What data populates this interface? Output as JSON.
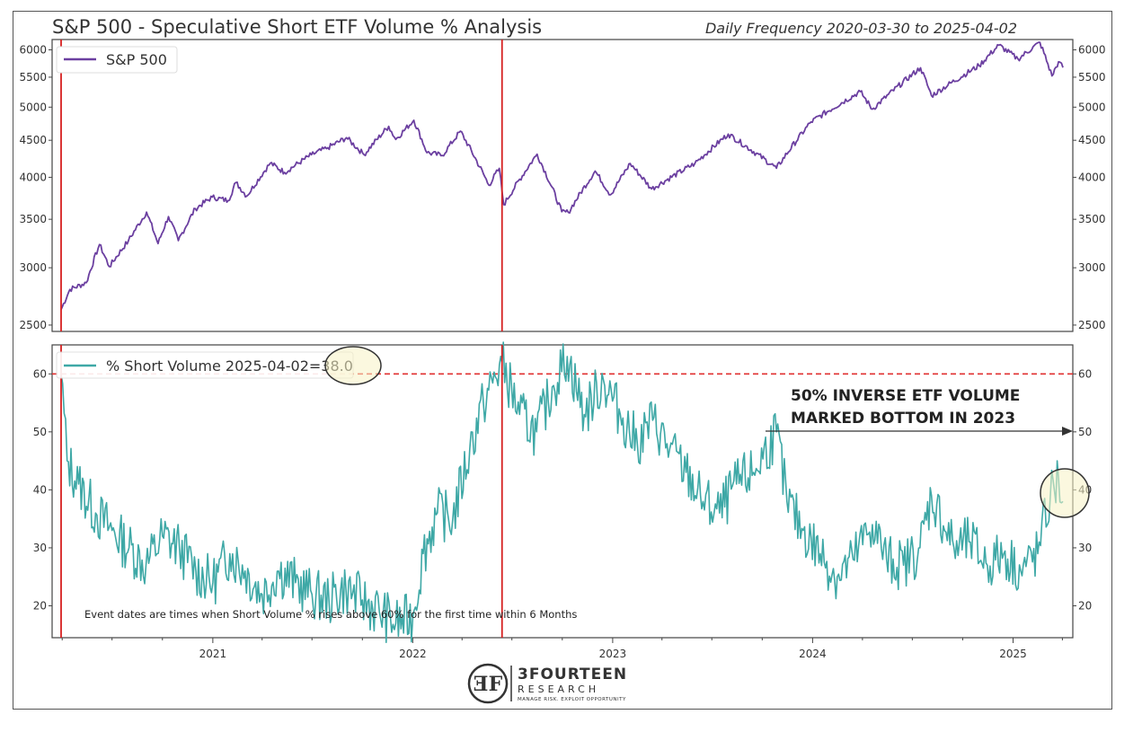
{
  "header": {
    "title": "S&P 500 - Speculative Short ETF Volume % Analysis",
    "subtitle": "Daily Frequency 2020-03-30 to 2025-04-02"
  },
  "annotations": {
    "note": "Event dates are times when Short Volume % rises above 60% for the first time within 6 Months",
    "arrow_line1": "50% INVERSE ETF VOLUME",
    "arrow_line2": "MARKED BOTTOM IN 2023"
  },
  "logo": {
    "name": "3FOURTEEN",
    "sub": "RESEARCH",
    "tagline": "MANAGE RISK. EXPLOIT OPPORTUNITY"
  },
  "colors": {
    "sp500": "#6b3fa0",
    "short_volume": "#3ea8a6",
    "event_line": "#d62020",
    "threshold": "#e03030",
    "highlight": "#f7f2c4"
  },
  "chart_data": [
    {
      "type": "line",
      "scale": "log",
      "legend": "S&P 500",
      "legend_placement": "top-left",
      "x_range": [
        "2020-03-30",
        "2025-04-02"
      ],
      "ylim": [
        2450,
        6200
      ],
      "y_ticks": [
        2500,
        3000,
        3500,
        4000,
        4500,
        5000,
        5500,
        6000
      ],
      "series": [
        {
          "name": "S&P 500",
          "points": [
            [
              "2020-03-30",
              2626
            ],
            [
              "2020-04-15",
              2800
            ],
            [
              "2020-05-15",
              2860
            ],
            [
              "2020-06-08",
              3230
            ],
            [
              "2020-06-26",
              3010
            ],
            [
              "2020-07-31",
              3270
            ],
            [
              "2020-09-02",
              3580
            ],
            [
              "2020-09-23",
              3240
            ],
            [
              "2020-10-12",
              3530
            ],
            [
              "2020-10-30",
              3270
            ],
            [
              "2020-11-30",
              3620
            ],
            [
              "2020-12-31",
              3756
            ],
            [
              "2021-01-29",
              3714
            ],
            [
              "2021-02-12",
              3934
            ],
            [
              "2021-03-04",
              3768
            ],
            [
              "2021-04-16",
              4185
            ],
            [
              "2021-05-12",
              4063
            ],
            [
              "2021-06-30",
              4297
            ],
            [
              "2021-07-30",
              4395
            ],
            [
              "2021-09-02",
              4537
            ],
            [
              "2021-10-04",
              4300
            ],
            [
              "2021-11-18",
              4704
            ],
            [
              "2021-12-01",
              4513
            ],
            [
              "2022-01-03",
              4796
            ],
            [
              "2022-01-27",
              4326
            ],
            [
              "2022-02-24",
              4288
            ],
            [
              "2022-03-29",
              4631
            ],
            [
              "2022-05-20",
              3901
            ],
            [
              "2022-06-08",
              4115
            ],
            [
              "2022-06-16",
              3666
            ],
            [
              "2022-08-16",
              4305
            ],
            [
              "2022-09-30",
              3585
            ],
            [
              "2022-10-12",
              3577
            ],
            [
              "2022-11-30",
              4080
            ],
            [
              "2022-12-28",
              3783
            ],
            [
              "2023-02-02",
              4179
            ],
            [
              "2023-03-13",
              3855
            ],
            [
              "2023-05-31",
              4179
            ],
            [
              "2023-07-31",
              4589
            ],
            [
              "2023-10-27",
              4117
            ],
            [
              "2023-12-29",
              4770
            ],
            [
              "2024-03-28",
              5254
            ],
            [
              "2024-04-19",
              4967
            ],
            [
              "2024-07-16",
              5667
            ],
            [
              "2024-08-05",
              5186
            ],
            [
              "2024-10-31",
              5705
            ],
            [
              "2024-12-06",
              6090
            ],
            [
              "2025-01-10",
              5827
            ],
            [
              "2025-02-19",
              6144
            ],
            [
              "2025-03-13",
              5522
            ],
            [
              "2025-03-25",
              5776
            ],
            [
              "2025-04-02",
              5671
            ]
          ]
        }
      ],
      "event_dates": [
        "2020-03-30",
        "2022-06-13"
      ]
    },
    {
      "type": "line",
      "legend": "% Short Volume 2025-04-02=38.0",
      "legend_placement": "top-left",
      "x_range": [
        "2020-03-30",
        "2025-04-02"
      ],
      "xticks": [
        "2021",
        "2022",
        "2023",
        "2024",
        "2025"
      ],
      "ylim": [
        14.5,
        65
      ],
      "y_ticks": [
        20,
        30,
        40,
        50,
        60
      ],
      "threshold": 60,
      "series": [
        {
          "name": "% Short Volume",
          "points": [
            [
              "2020-03-30",
              60
            ],
            [
              "2020-04-10",
              45
            ],
            [
              "2020-05-01",
              41
            ],
            [
              "2020-06-01",
              36
            ],
            [
              "2020-07-01",
              33
            ],
            [
              "2020-08-01",
              30
            ],
            [
              "2020-09-01",
              27
            ],
            [
              "2020-10-01",
              32
            ],
            [
              "2020-11-01",
              30
            ],
            [
              "2020-12-01",
              26
            ],
            [
              "2021-01-01",
              24
            ],
            [
              "2021-02-01",
              29
            ],
            [
              "2021-03-01",
              26
            ],
            [
              "2021-04-01",
              22
            ],
            [
              "2021-05-01",
              26
            ],
            [
              "2021-06-01",
              24
            ],
            [
              "2021-07-01",
              22
            ],
            [
              "2021-08-01",
              21
            ],
            [
              "2021-09-01",
              23
            ],
            [
              "2021-10-01",
              21
            ],
            [
              "2021-11-01",
              19
            ],
            [
              "2021-12-01",
              17
            ],
            [
              "2022-01-01",
              18
            ],
            [
              "2022-01-20",
              29
            ],
            [
              "2022-02-15",
              36
            ],
            [
              "2022-03-15",
              35
            ],
            [
              "2022-04-15",
              47
            ],
            [
              "2022-05-10",
              55
            ],
            [
              "2022-06-13",
              62
            ],
            [
              "2022-07-15",
              53
            ],
            [
              "2022-08-15",
              50
            ],
            [
              "2022-09-15",
              58
            ],
            [
              "2022-10-10",
              63
            ],
            [
              "2022-11-10",
              53
            ],
            [
              "2022-12-15",
              59
            ],
            [
              "2023-01-15",
              53
            ],
            [
              "2023-02-15",
              48
            ],
            [
              "2023-03-15",
              52
            ],
            [
              "2023-04-15",
              47
            ],
            [
              "2023-05-15",
              43
            ],
            [
              "2023-06-15",
              38
            ],
            [
              "2023-07-15",
              36
            ],
            [
              "2023-08-15",
              41
            ],
            [
              "2023-09-15",
              43
            ],
            [
              "2023-10-27",
              50
            ],
            [
              "2023-11-15",
              38
            ],
            [
              "2023-12-15",
              33
            ],
            [
              "2024-01-15",
              29
            ],
            [
              "2024-02-15",
              25
            ],
            [
              "2024-03-15",
              28
            ],
            [
              "2024-04-19",
              34
            ],
            [
              "2024-05-15",
              28
            ],
            [
              "2024-06-15",
              27
            ],
            [
              "2024-07-15",
              30
            ],
            [
              "2024-08-05",
              39
            ],
            [
              "2024-09-15",
              30
            ],
            [
              "2024-10-15",
              31
            ],
            [
              "2024-11-15",
              27
            ],
            [
              "2024-12-15",
              29
            ],
            [
              "2025-01-15",
              26
            ],
            [
              "2025-02-15",
              29
            ],
            [
              "2025-03-10",
              39
            ],
            [
              "2025-03-25",
              42
            ],
            [
              "2025-04-02",
              38
            ]
          ]
        }
      ],
      "event_dates": [
        "2020-03-30",
        "2022-06-13"
      ]
    }
  ]
}
